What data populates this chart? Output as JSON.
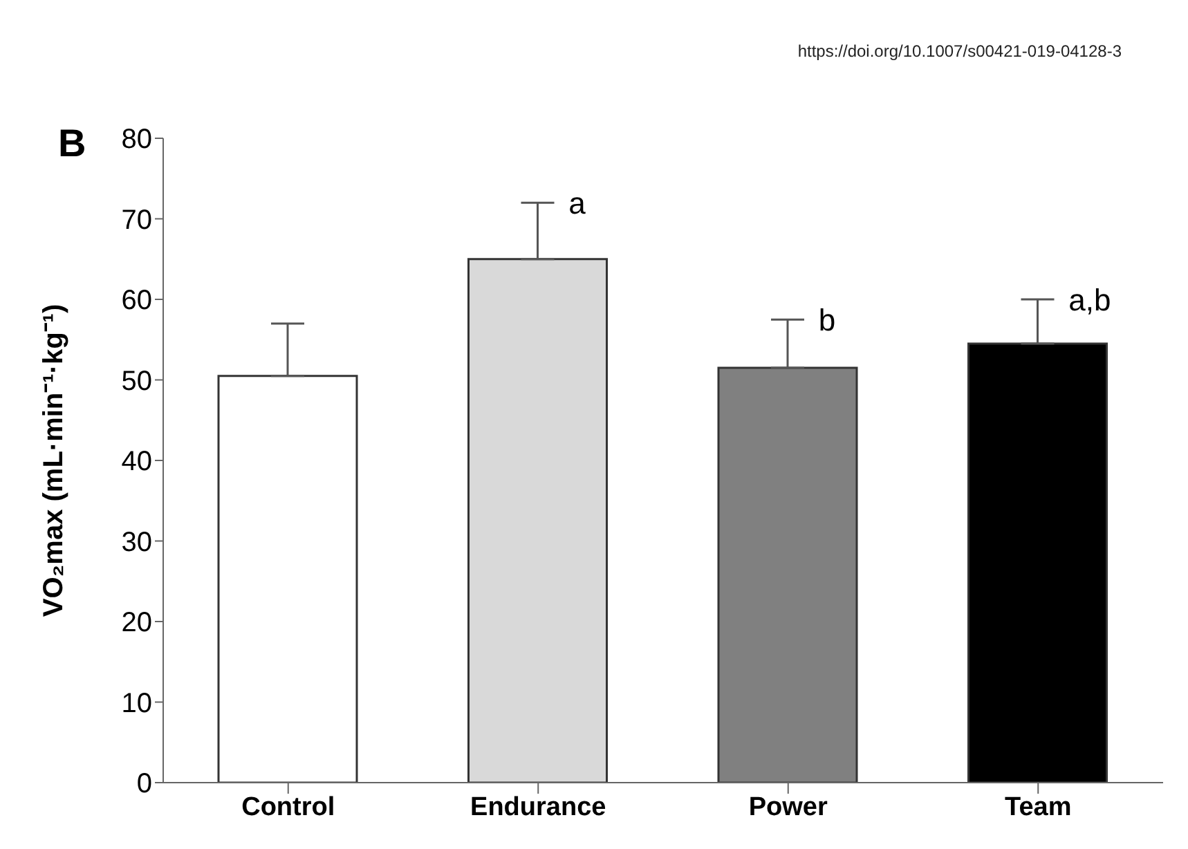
{
  "chart_data": {
    "type": "bar",
    "categories": [
      "Control",
      "Endurance",
      "Power",
      "Team"
    ],
    "values": [
      50.5,
      65,
      51.5,
      54.5
    ],
    "colors": [
      "#ffffff",
      "#d9d9d9",
      "#808080",
      "#000000"
    ],
    "errors": [
      [
        50.5,
        57
      ],
      [
        65,
        72
      ],
      [
        51.5,
        57.5
      ],
      [
        54.5,
        60
      ]
    ],
    "ylabel": "VO₂max (mL·min⁻¹·kg⁻¹)",
    "ylim": [
      0,
      80
    ],
    "yticks": [
      0,
      10,
      20,
      30,
      40,
      50,
      60,
      70,
      80
    ],
    "grid": false,
    "legend": false,
    "annotations": [
      "https://doi.org/10.1007/s00421-019-04128-3",
      "B",
      "a",
      "b",
      "a,b"
    ]
  }
}
